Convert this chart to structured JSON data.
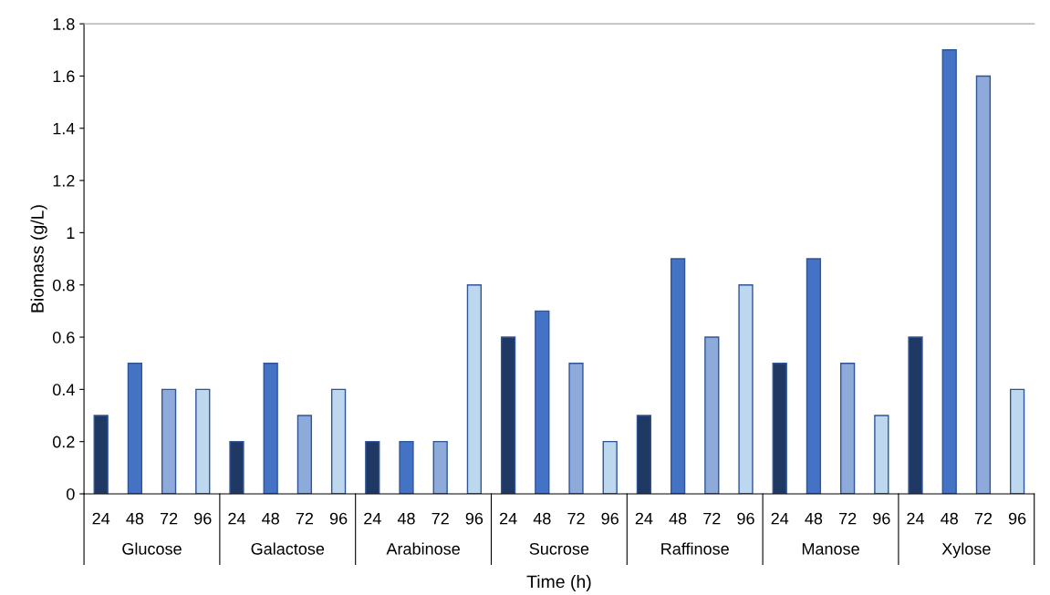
{
  "chart_data": {
    "type": "bar",
    "xlabel": "Time (h)",
    "ylabel": "Biomass (g/L)",
    "categories": [
      "Glucose",
      "Galactose",
      "Arabinose",
      "Sucrose",
      "Raffinose",
      "Manose",
      "Xylose"
    ],
    "series": [
      {
        "name": "24",
        "color": "#1f3864",
        "values": [
          0.3,
          0.2,
          0.2,
          0.6,
          0.3,
          0.5,
          0.6
        ]
      },
      {
        "name": "48",
        "color": "#4472c4",
        "values": [
          0.5,
          0.5,
          0.2,
          0.7,
          0.9,
          0.9,
          1.7
        ]
      },
      {
        "name": "72",
        "color": "#8eaadb",
        "values": [
          0.4,
          0.3,
          0.2,
          0.5,
          0.6,
          0.5,
          1.6
        ]
      },
      {
        "name": "96",
        "color": "#bdd7ee",
        "values": [
          0.4,
          0.4,
          0.8,
          0.2,
          0.8,
          0.3,
          0.4
        ]
      }
    ],
    "ylim": [
      0,
      1.8
    ],
    "yticks": [
      0,
      0.2,
      0.4,
      0.6,
      0.8,
      1,
      1.2,
      1.4,
      1.6,
      1.8
    ],
    "grid": false,
    "legend": false
  }
}
